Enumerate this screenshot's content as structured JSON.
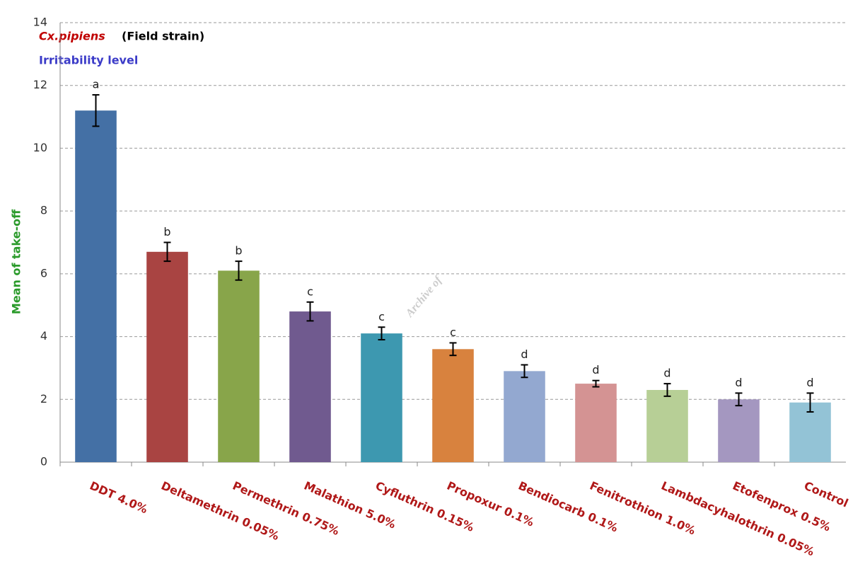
{
  "chart_data": {
    "type": "bar",
    "title": "Cx.pipiens",
    "subtitle": "(Field strain)",
    "heading": "Irritability level",
    "y_label": "Mean of take-off",
    "watermark": "Archive of",
    "categories": [
      "DDT 4.0%",
      "Deltamethrin 0.05%",
      "Permethrin 0.75%",
      "Malathion 5.0%",
      "Cyfluthrin 0.15%",
      "Propoxur 0.1%",
      "Bendiocarb 0.1%",
      "Fenitrothion 1.0%",
      "Lambdacyhalothrin 0.05%",
      "Etofenprox 0.5%",
      "Control"
    ],
    "values": [
      11.2,
      6.7,
      6.1,
      4.8,
      4.1,
      3.6,
      2.9,
      2.5,
      2.3,
      2.0,
      1.9
    ],
    "errors": [
      0.5,
      0.3,
      0.3,
      0.3,
      0.2,
      0.2,
      0.2,
      0.1,
      0.2,
      0.2,
      0.3
    ],
    "letters": [
      "a",
      "b",
      "b",
      "c",
      "c",
      "c",
      "d",
      "d",
      "d",
      "d",
      "d"
    ],
    "colors": [
      "#4470a5",
      "#a94442",
      "#88a54a",
      "#705a8f",
      "#3d98b0",
      "#d8823e",
      "#93a8d0",
      "#d49393",
      "#b7cf96",
      "#a497c0",
      "#93c3d6"
    ],
    "ylim": [
      0,
      14
    ],
    "yticks": [
      0,
      2,
      4,
      6,
      8,
      10,
      12,
      14
    ],
    "grid": true
  }
}
